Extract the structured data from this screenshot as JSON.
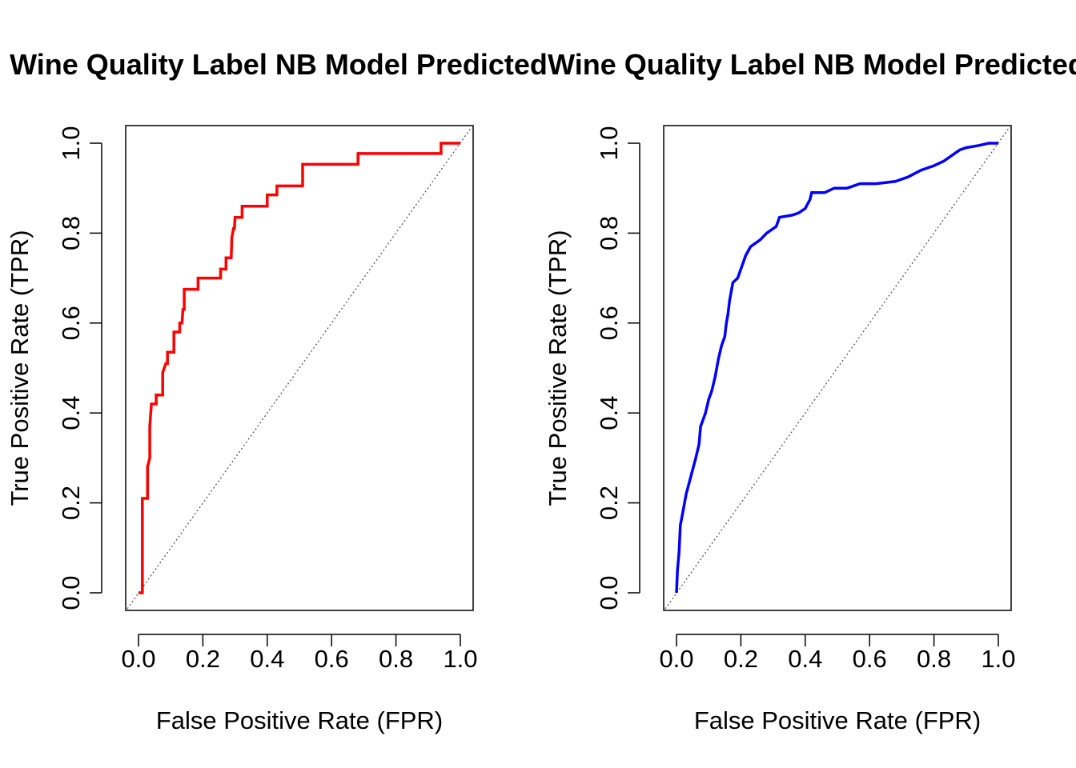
{
  "chart_data": [
    {
      "type": "line",
      "title": "Wine Quality Label NB Model Predicted",
      "xlabel": "False Positive Rate (FPR)",
      "ylabel": "True Positive Rate (TPR)",
      "xlim": [
        0,
        1
      ],
      "ylim": [
        0,
        1
      ],
      "xticks": [
        "0.0",
        "0.2",
        "0.4",
        "0.6",
        "0.8",
        "1.0"
      ],
      "yticks": [
        "0.0",
        "0.2",
        "0.4",
        "0.6",
        "0.8",
        "1.0"
      ],
      "grid": false,
      "reference_line": "diagonal",
      "series": [
        {
          "color": "#ff0000",
          "points": [
            [
              0,
              0
            ],
            [
              0.012,
              0
            ],
            [
              0.012,
              0.21
            ],
            [
              0.028,
              0.21
            ],
            [
              0.028,
              0.28
            ],
            [
              0.035,
              0.3
            ],
            [
              0.035,
              0.37
            ],
            [
              0.04,
              0.42
            ],
            [
              0.055,
              0.42
            ],
            [
              0.055,
              0.44
            ],
            [
              0.075,
              0.44
            ],
            [
              0.075,
              0.49
            ],
            [
              0.085,
              0.51
            ],
            [
              0.09,
              0.51
            ],
            [
              0.09,
              0.535
            ],
            [
              0.11,
              0.535
            ],
            [
              0.11,
              0.58
            ],
            [
              0.128,
              0.58
            ],
            [
              0.128,
              0.6
            ],
            [
              0.135,
              0.6
            ],
            [
              0.138,
              0.63
            ],
            [
              0.142,
              0.63
            ],
            [
              0.142,
              0.675
            ],
            [
              0.185,
              0.675
            ],
            [
              0.185,
              0.7
            ],
            [
              0.255,
              0.7
            ],
            [
              0.255,
              0.72
            ],
            [
              0.272,
              0.72
            ],
            [
              0.272,
              0.745
            ],
            [
              0.288,
              0.745
            ],
            [
              0.29,
              0.79
            ],
            [
              0.295,
              0.81
            ],
            [
              0.298,
              0.81
            ],
            [
              0.3,
              0.835
            ],
            [
              0.322,
              0.835
            ],
            [
              0.322,
              0.86
            ],
            [
              0.4,
              0.86
            ],
            [
              0.4,
              0.885
            ],
            [
              0.43,
              0.885
            ],
            [
              0.43,
              0.905
            ],
            [
              0.51,
              0.905
            ],
            [
              0.51,
              0.953
            ],
            [
              0.682,
              0.953
            ],
            [
              0.682,
              0.977
            ],
            [
              0.94,
              0.977
            ],
            [
              0.94,
              1.0
            ],
            [
              1.0,
              1.0
            ]
          ]
        }
      ]
    },
    {
      "type": "line",
      "title": "Wine Quality Label NB Model Predicted",
      "xlabel": "False Positive Rate (FPR)",
      "ylabel": "True Positive Rate (TPR)",
      "xlim": [
        0,
        1
      ],
      "ylim": [
        0,
        1
      ],
      "xticks": [
        "0.0",
        "0.2",
        "0.4",
        "0.6",
        "0.8",
        "1.0"
      ],
      "yticks": [
        "0.0",
        "0.2",
        "0.4",
        "0.6",
        "0.8",
        "1.0"
      ],
      "grid": false,
      "reference_line": "diagonal",
      "series": [
        {
          "color": "#0000ff",
          "points": [
            [
              0,
              0
            ],
            [
              0.003,
              0.05
            ],
            [
              0.008,
              0.09
            ],
            [
              0.012,
              0.15
            ],
            [
              0.02,
              0.18
            ],
            [
              0.03,
              0.22
            ],
            [
              0.045,
              0.26
            ],
            [
              0.06,
              0.3
            ],
            [
              0.07,
              0.33
            ],
            [
              0.075,
              0.37
            ],
            [
              0.09,
              0.4
            ],
            [
              0.1,
              0.43
            ],
            [
              0.11,
              0.45
            ],
            [
              0.12,
              0.48
            ],
            [
              0.125,
              0.5
            ],
            [
              0.13,
              0.52
            ],
            [
              0.14,
              0.55
            ],
            [
              0.15,
              0.57
            ],
            [
              0.155,
              0.6
            ],
            [
              0.16,
              0.62
            ],
            [
              0.165,
              0.65
            ],
            [
              0.175,
              0.69
            ],
            [
              0.19,
              0.7
            ],
            [
              0.2,
              0.72
            ],
            [
              0.215,
              0.75
            ],
            [
              0.23,
              0.77
            ],
            [
              0.26,
              0.785
            ],
            [
              0.28,
              0.8
            ],
            [
              0.31,
              0.815
            ],
            [
              0.32,
              0.835
            ],
            [
              0.36,
              0.84
            ],
            [
              0.38,
              0.845
            ],
            [
              0.4,
              0.855
            ],
            [
              0.415,
              0.875
            ],
            [
              0.42,
              0.89
            ],
            [
              0.46,
              0.89
            ],
            [
              0.49,
              0.9
            ],
            [
              0.53,
              0.9
            ],
            [
              0.57,
              0.91
            ],
            [
              0.62,
              0.91
            ],
            [
              0.68,
              0.915
            ],
            [
              0.72,
              0.925
            ],
            [
              0.76,
              0.94
            ],
            [
              0.8,
              0.95
            ],
            [
              0.83,
              0.96
            ],
            [
              0.86,
              0.975
            ],
            [
              0.88,
              0.985
            ],
            [
              0.9,
              0.99
            ],
            [
              0.94,
              0.995
            ],
            [
              0.97,
              1.0
            ],
            [
              1.0,
              1.0
            ]
          ]
        }
      ]
    }
  ]
}
